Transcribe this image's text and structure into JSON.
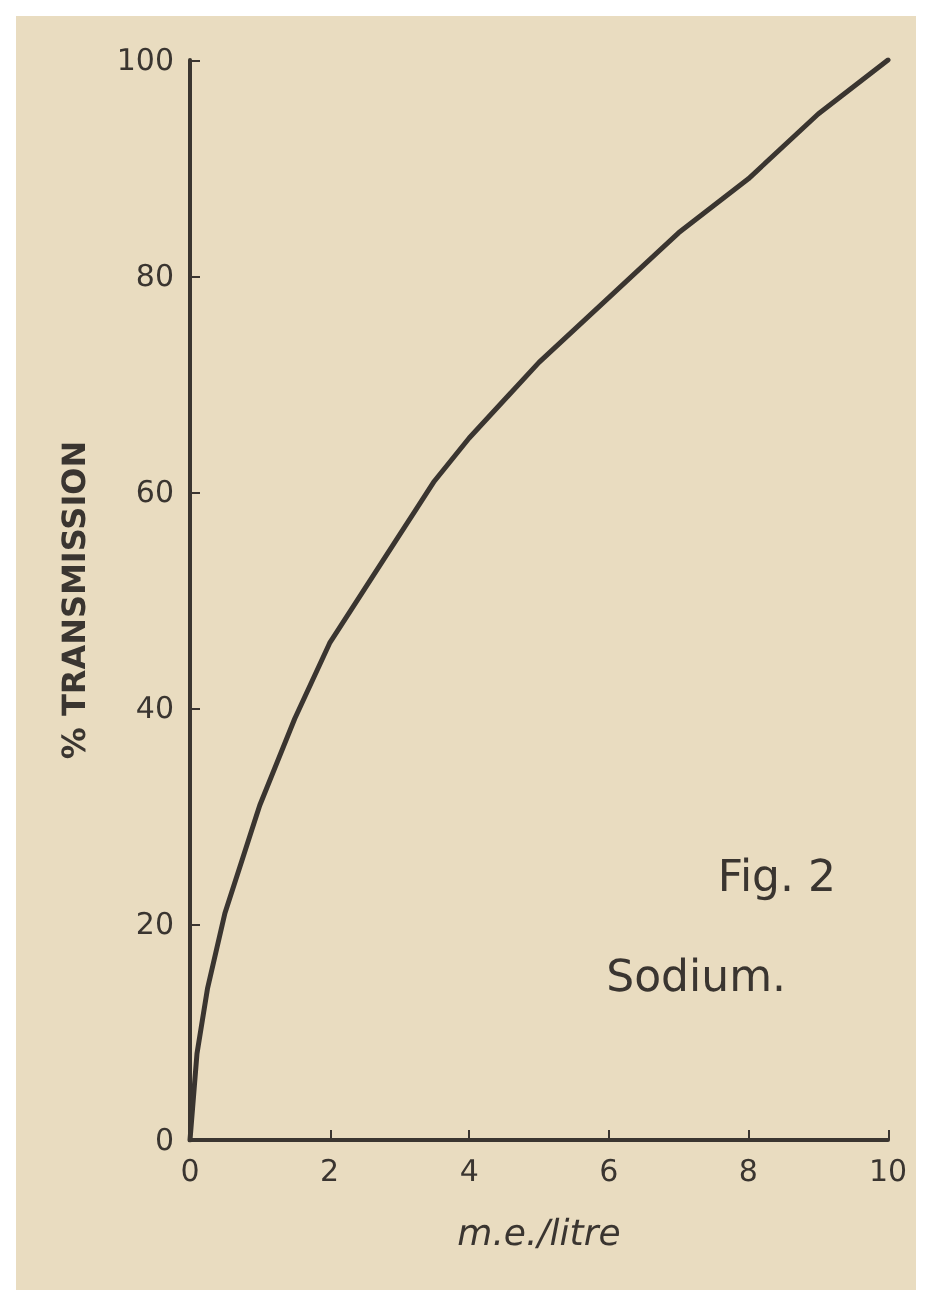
{
  "chart_data": {
    "type": "line",
    "xlabel": "m.e./litre",
    "ylabel": "% TRANSMISSION",
    "annotations": [
      "Fig. 2",
      "Sodium."
    ],
    "x": [
      0,
      0.1,
      0.25,
      0.5,
      0.75,
      1,
      1.5,
      2,
      2.5,
      3,
      3.5,
      4,
      5,
      6,
      7,
      8,
      9,
      10
    ],
    "series": [
      {
        "color": "#3a3530",
        "values": [
          0,
          8,
          14,
          21,
          26,
          31,
          39,
          46,
          51,
          56,
          61,
          65,
          72,
          78,
          84,
          89,
          95,
          100
        ]
      }
    ],
    "xlim": [
      0,
      10
    ],
    "xticks": [
      0,
      2,
      4,
      6,
      8,
      10
    ],
    "ylim": [
      0,
      100
    ],
    "yticks": [
      0,
      20,
      40,
      60,
      80,
      100
    ],
    "grid": false,
    "marker": "none",
    "line_style": "solid"
  }
}
